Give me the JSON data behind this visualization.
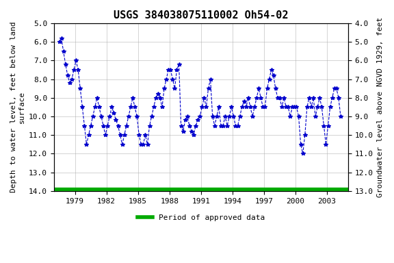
{
  "title": "USGS 384038075110002 Oh54-02",
  "ylabel_left": "Depth to water level, feet below land\nsurface",
  "ylabel_right": "Groundwater level above NGVD 1929, feet",
  "ylim_left": [
    5.0,
    14.0
  ],
  "ylim_right": [
    13.0,
    4.0
  ],
  "yticks_left": [
    5.0,
    6.0,
    7.0,
    8.0,
    9.0,
    10.0,
    11.0,
    12.0,
    13.0,
    14.0
  ],
  "yticks_right": [
    13.0,
    12.0,
    11.0,
    10.0,
    9.0,
    8.0,
    7.0,
    6.0,
    5.0,
    4.0
  ],
  "xlim": [
    1977.0,
    2005.0
  ],
  "xticks": [
    1979,
    1982,
    1985,
    1988,
    1991,
    1994,
    1997,
    2000,
    2003
  ],
  "legend_label": "Period of approved data",
  "legend_color": "#00aa00",
  "background_color": "#ffffff",
  "plot_bg_color": "#ffffff",
  "line_color": "#0000cc",
  "approved_bar_color": "#00aa00",
  "approved_bar_y": 14.0,
  "approved_bar_thickness": 0.18,
  "title_fontsize": 11,
  "axis_label_fontsize": 8,
  "tick_fontsize": 8,
  "data_x": [
    1977.5,
    1977.7,
    1977.9,
    1978.1,
    1978.3,
    1978.5,
    1978.7,
    1978.9,
    1979.1,
    1979.3,
    1979.5,
    1979.7,
    1979.9,
    1980.1,
    1980.3,
    1980.5,
    1980.7,
    1980.9,
    1981.1,
    1981.3,
    1981.5,
    1981.7,
    1981.9,
    1982.1,
    1982.3,
    1982.5,
    1982.7,
    1982.9,
    1983.1,
    1983.3,
    1983.5,
    1983.7,
    1983.9,
    1984.1,
    1984.3,
    1984.5,
    1984.7,
    1984.9,
    1985.1,
    1985.3,
    1985.5,
    1985.7,
    1985.9,
    1986.1,
    1986.3,
    1986.5,
    1986.7,
    1986.9,
    1987.1,
    1987.3,
    1987.5,
    1987.7,
    1987.9,
    1988.1,
    1988.3,
    1988.5,
    1988.7,
    1988.9,
    1989.1,
    1989.3,
    1989.5,
    1989.7,
    1989.9,
    1990.1,
    1990.3,
    1990.5,
    1990.7,
    1990.9,
    1991.1,
    1991.3,
    1991.5,
    1991.7,
    1991.9,
    1992.1,
    1992.3,
    1992.5,
    1992.7,
    1992.9,
    1993.1,
    1993.3,
    1993.5,
    1993.7,
    1993.9,
    1994.1,
    1994.3,
    1994.5,
    1994.7,
    1994.9,
    1995.1,
    1995.3,
    1995.5,
    1995.7,
    1995.9,
    1996.1,
    1996.3,
    1996.5,
    1996.7,
    1996.9,
    1997.1,
    1997.3,
    1997.5,
    1997.7,
    1997.9,
    1998.1,
    1998.3,
    1998.5,
    1998.7,
    1998.9,
    1999.1,
    1999.3,
    1999.5,
    1999.7,
    1999.9,
    2000.1,
    2000.3,
    2000.5,
    2000.7,
    2000.9,
    2001.1,
    2001.3,
    2001.5,
    2001.7,
    2001.9,
    2002.1,
    2002.3,
    2002.5,
    2002.7,
    2002.9,
    2003.1,
    2003.3,
    2003.5,
    2003.7,
    2003.9,
    2004.1,
    2004.3
  ],
  "data_y": [
    6.0,
    5.8,
    6.5,
    7.2,
    7.8,
    8.2,
    8.0,
    7.5,
    7.0,
    7.5,
    8.5,
    9.5,
    10.5,
    11.5,
    11.0,
    10.5,
    10.0,
    9.5,
    9.0,
    9.5,
    10.0,
    10.5,
    11.0,
    10.5,
    10.0,
    9.5,
    9.8,
    10.2,
    10.5,
    11.0,
    11.5,
    11.0,
    10.5,
    10.0,
    9.5,
    9.0,
    9.5,
    10.0,
    11.0,
    11.5,
    11.5,
    11.0,
    11.5,
    10.5,
    10.0,
    9.5,
    9.0,
    8.8,
    9.0,
    9.5,
    8.5,
    8.0,
    7.5,
    7.5,
    8.0,
    8.5,
    7.5,
    7.2,
    10.5,
    10.8,
    10.2,
    10.0,
    10.5,
    10.8,
    11.0,
    10.5,
    10.2,
    10.0,
    9.5,
    9.0,
    9.5,
    8.5,
    8.0,
    10.0,
    10.5,
    10.0,
    9.5,
    10.5,
    10.5,
    10.0,
    10.5,
    10.0,
    9.5,
    10.0,
    10.5,
    10.5,
    10.0,
    9.5,
    9.2,
    9.5,
    9.0,
    9.5,
    10.0,
    9.5,
    9.0,
    8.5,
    9.0,
    9.5,
    9.5,
    8.5,
    8.0,
    7.5,
    7.8,
    8.5,
    9.0,
    9.0,
    9.5,
    9.0,
    9.5,
    9.5,
    10.0,
    9.5,
    9.5,
    9.5,
    10.0,
    11.5,
    12.0,
    11.0,
    9.5,
    9.0,
    9.5,
    9.0,
    10.0,
    9.5,
    9.0,
    9.5,
    10.5,
    11.5,
    10.5,
    9.5,
    9.0,
    8.5,
    8.5,
    9.0,
    10.0
  ]
}
